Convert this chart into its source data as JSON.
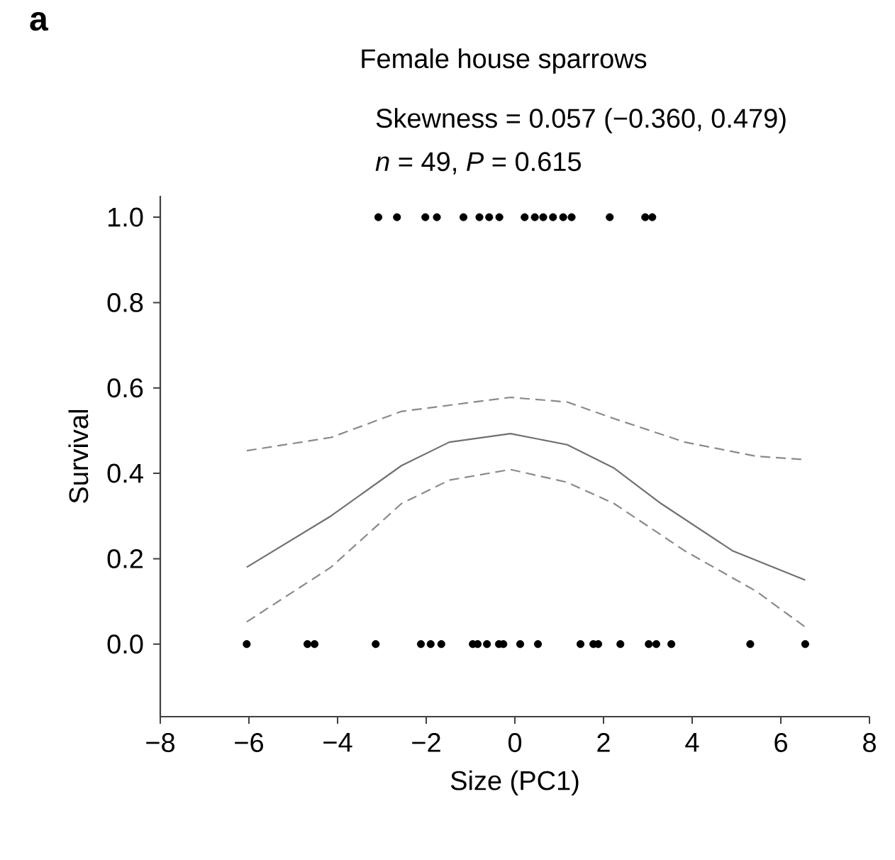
{
  "chart_data": {
    "type": "scatter",
    "title": "Female house sparrows",
    "subtitle": "Skewness = 0.057 (−0.360, 0.479)",
    "annotations": [
      "a",
      "*n* = 49, *P* = 0.615"
    ],
    "xlabel": "Size (PC1)",
    "ylabel": "Survival",
    "xlim": [
      -8,
      8
    ],
    "ylim": [
      -0.17,
      1.05
    ],
    "xticks": [
      {
        "value": -8,
        "label": "−8"
      },
      {
        "value": -6,
        "label": "−6"
      },
      {
        "value": -4,
        "label": "−4"
      },
      {
        "value": -2,
        "label": "−2"
      },
      0,
      2,
      4,
      6,
      8
    ],
    "yticks": [
      {
        "value": 0,
        "label": "0.0"
      },
      {
        "value": 0.2,
        "label": "0.2"
      },
      {
        "value": 0.4,
        "label": "0.4"
      },
      {
        "value": 0.6,
        "label": "0.6"
      },
      {
        "value": 0.8,
        "label": "0.8"
      },
      {
        "value": 1,
        "label": "1.0"
      }
    ],
    "series": [
      {
        "color": "#000000",
        "x": [
          -3.08,
          -2.66,
          -2.02,
          -1.76,
          -1.16,
          -0.8,
          -0.58,
          -0.35,
          0.22,
          0.45,
          0.64,
          0.86,
          1.09,
          1.28,
          2.14,
          2.94,
          3.1,
          -6.05,
          -4.68,
          -4.52,
          -3.14,
          -2.12,
          -1.9,
          -1.66,
          -0.95,
          -0.84,
          -0.63,
          -0.36,
          -0.26,
          0.12,
          0.52,
          1.48,
          1.77,
          1.88,
          2.38,
          3.02,
          3.19,
          3.53,
          5.31,
          6.55
        ],
        "values": [
          1,
          1,
          1,
          1,
          1,
          1,
          1,
          1,
          1,
          1,
          1,
          1,
          1,
          1,
          1,
          1,
          1,
          0,
          0,
          0,
          0,
          0,
          0,
          0,
          0,
          0,
          0,
          0,
          0,
          0,
          0,
          0,
          0,
          0,
          0,
          0,
          0,
          0,
          0,
          0
        ]
      },
      {
        "type": "line",
        "color": "#707070",
        "line_style": "solid",
        "x": [
          -6.05,
          -4.15,
          -2.56,
          -1.48,
          -0.1,
          1.18,
          2.24,
          3.3,
          4.92,
          6.55
        ],
        "values": [
          0.18,
          0.3,
          0.418,
          0.473,
          0.493,
          0.467,
          0.412,
          0.329,
          0.218,
          0.15
        ]
      },
      {
        "type": "line",
        "color": "#8a8a8a",
        "line_style": "dashed",
        "x": [
          -6.05,
          -4.15,
          -2.56,
          -0.1,
          1.18,
          2.24,
          3.84,
          5.44,
          6.55
        ],
        "values": [
          0.453,
          0.484,
          0.545,
          0.578,
          0.567,
          0.528,
          0.473,
          0.44,
          0.432
        ]
      },
      {
        "type": "line",
        "color": "#8a8a8a",
        "line_style": "dashed",
        "x": [
          -6.05,
          -4.15,
          -2.56,
          -1.48,
          -0.1,
          1.18,
          2.24,
          3.84,
          5.44,
          6.55
        ],
        "values": [
          0.052,
          0.18,
          0.329,
          0.384,
          0.409,
          0.379,
          0.329,
          0.218,
          0.124,
          0.04
        ]
      }
    ]
  }
}
